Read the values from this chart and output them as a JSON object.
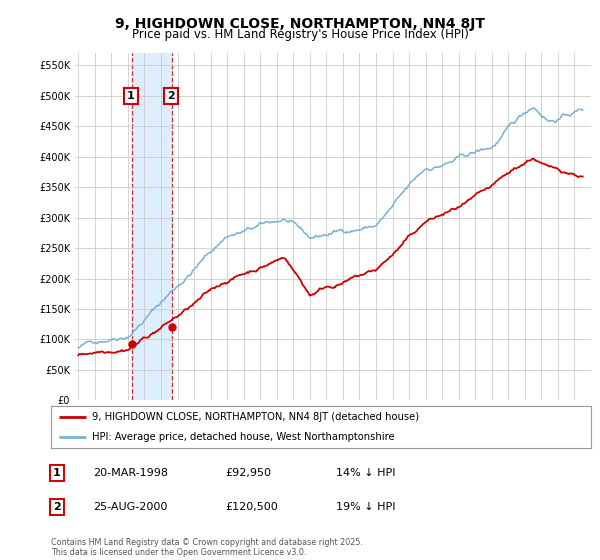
{
  "title": "9, HIGHDOWN CLOSE, NORTHAMPTON, NN4 8JT",
  "subtitle": "Price paid vs. HM Land Registry's House Price Index (HPI)",
  "legend_line1": "9, HIGHDOWN CLOSE, NORTHAMPTON, NN4 8JT (detached house)",
  "legend_line2": "HPI: Average price, detached house, West Northamptonshire",
  "transaction1_date": "20-MAR-1998",
  "transaction1_price": "£92,950",
  "transaction1_hpi": "14% ↓ HPI",
  "transaction2_date": "25-AUG-2000",
  "transaction2_price": "£120,500",
  "transaction2_hpi": "19% ↓ HPI",
  "footer": "Contains HM Land Registry data © Crown copyright and database right 2025.\nThis data is licensed under the Open Government Licence v3.0.",
  "price_color": "#cc0000",
  "hpi_color": "#7ab0d4",
  "background_color": "#ffffff",
  "grid_color": "#cccccc",
  "shade_color": "#ddeeff",
  "ylim": [
    0,
    570000
  ],
  "yticks": [
    0,
    50000,
    100000,
    150000,
    200000,
    250000,
    300000,
    350000,
    400000,
    450000,
    500000,
    550000
  ],
  "transaction1_x": 1998.22,
  "transaction1_y": 92950,
  "transaction2_x": 2000.65,
  "transaction2_y": 120500,
  "xmin": 1995,
  "xmax": 2025.5
}
